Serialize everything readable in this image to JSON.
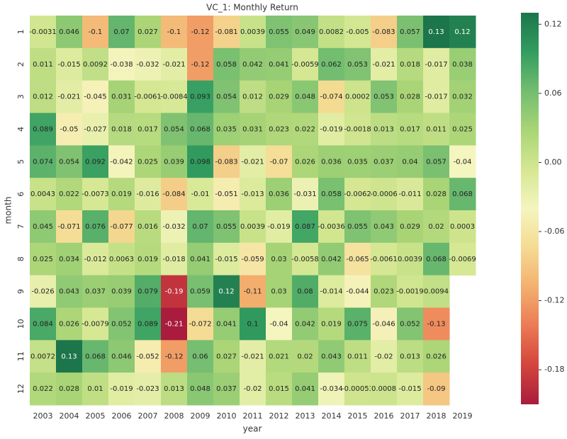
{
  "chart_data": {
    "type": "heatmap",
    "title": "VC_1: Monthly Return",
    "x_label": "year",
    "y_label": "month",
    "x": [
      "2003",
      "2004",
      "2005",
      "2006",
      "2007",
      "2008",
      "2009",
      "2010",
      "2011",
      "2012",
      "2013",
      "2014",
      "2015",
      "2016",
      "2017",
      "2018",
      "2019"
    ],
    "y": [
      "1",
      "2",
      "3",
      "4",
      "5",
      "6",
      "7",
      "8",
      "9",
      "10",
      "11",
      "12"
    ],
    "z": [
      [
        -0.0031,
        0.046,
        -0.1,
        0.07,
        0.027,
        -0.1,
        -0.12,
        -0.081,
        0.0039,
        0.055,
        0.049,
        0.0082,
        -0.005,
        -0.083,
        0.057,
        0.13,
        0.12
      ],
      [
        0.011,
        -0.015,
        0.0092,
        -0.038,
        -0.032,
        -0.021,
        -0.12,
        0.058,
        0.042,
        0.041,
        -0.0059,
        0.062,
        0.053,
        -0.021,
        0.018,
        -0.017,
        0.038
      ],
      [
        0.012,
        -0.021,
        -0.045,
        0.031,
        -0.0061,
        -0.0084,
        0.093,
        0.054,
        0.012,
        0.029,
        0.048,
        -0.074,
        0.0002,
        0.053,
        0.028,
        -0.017,
        0.032
      ],
      [
        0.089,
        -0.05,
        -0.027,
        0.018,
        0.017,
        0.054,
        0.068,
        0.035,
        0.031,
        0.023,
        0.022,
        -0.019,
        -0.0018,
        0.013,
        0.017,
        0.011,
        0.025
      ],
      [
        0.074,
        0.054,
        0.092,
        -0.042,
        0.025,
        0.039,
        0.098,
        -0.083,
        -0.021,
        -0.07,
        0.026,
        0.036,
        0.035,
        0.037,
        0.04,
        0.057,
        -0.04
      ],
      [
        0.0043,
        0.022,
        -0.0073,
        0.019,
        -0.016,
        -0.084,
        -0.01,
        -0.051,
        -0.013,
        0.036,
        -0.031,
        0.058,
        -0.0062,
        -0.0006,
        -0.011,
        0.028,
        0.068
      ],
      [
        0.045,
        -0.071,
        0.076,
        -0.077,
        0.016,
        -0.032,
        0.07,
        0.055,
        0.0039,
        -0.019,
        0.087,
        -0.0036,
        0.055,
        0.043,
        0.029,
        0.02,
        0.0003
      ],
      [
        0.025,
        0.034,
        -0.012,
        0.0063,
        0.019,
        -0.018,
        0.041,
        -0.015,
        -0.059,
        0.03,
        -0.0058,
        0.042,
        -0.065,
        -0.0061,
        0.0039,
        0.068,
        -0.0069
      ],
      [
        -0.026,
        0.043,
        0.037,
        0.039,
        0.079,
        -0.19,
        0.059,
        0.12,
        -0.11,
        0.03,
        0.08,
        -0.014,
        -0.044,
        0.023,
        -0.0019,
        0.0094,
        null
      ],
      [
        0.084,
        0.026,
        -0.0079,
        0.052,
        0.089,
        -0.21,
        -0.072,
        0.041,
        0.1,
        -0.04,
        0.042,
        0.019,
        0.075,
        -0.046,
        0.052,
        -0.13,
        null
      ],
      [
        0.0072,
        0.13,
        0.068,
        0.046,
        -0.052,
        -0.12,
        0.06,
        0.027,
        -0.021,
        0.021,
        0.02,
        0.043,
        0.011,
        -0.02,
        0.013,
        0.026,
        null
      ],
      [
        0.022,
        0.028,
        0.01,
        -0.019,
        -0.023,
        0.013,
        0.048,
        0.037,
        -0.02,
        0.015,
        0.041,
        -0.034,
        -0.00053,
        0.0008,
        -0.015,
        -0.09,
        null
      ]
    ],
    "colormap": "RdYlGn",
    "clim": [
      -0.21,
      0.13
    ],
    "cticks": [
      -0.18,
      -0.12,
      -0.06,
      {
        "value": 0,
        "label": "0.00"
      },
      0.06,
      0.12
    ],
    "annotate": true
  }
}
